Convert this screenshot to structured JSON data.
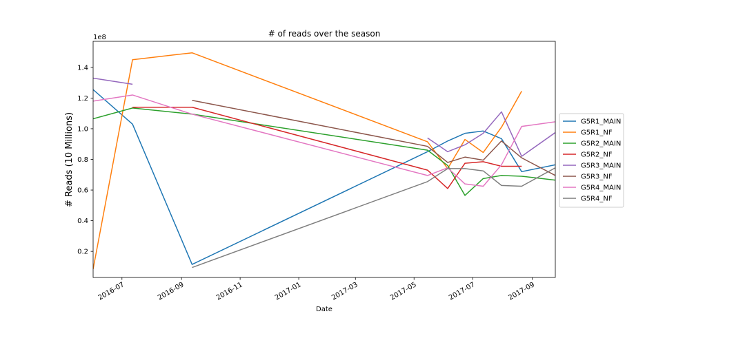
{
  "chart_data": {
    "type": "line",
    "title": "# of reads over the season",
    "xlabel": "Date",
    "ylabel": "# Reads (10 Millions)",
    "offset_text": "1e8",
    "xlim": [
      "2016-06-01",
      "2017-09-25"
    ],
    "ylim": [
      3000000,
      157000000
    ],
    "x_ticks": [
      "2016-07-01",
      "2016-09-01",
      "2016-11-01",
      "2017-01-01",
      "2017-03-01",
      "2017-05-01",
      "2017-07-01",
      "2017-09-01"
    ],
    "x_tick_labels": [
      "2016-07",
      "2016-09",
      "2016-11",
      "2017-01",
      "2017-03",
      "2017-05",
      "2017-07",
      "2017-09"
    ],
    "y_ticks": [
      20000000,
      40000000,
      60000000,
      80000000,
      100000000,
      120000000,
      140000000
    ],
    "y_tick_labels": [
      "0.2",
      "0.4",
      "0.6",
      "0.8",
      "1.0",
      "1.2",
      "1.4"
    ],
    "grid": false,
    "legend_position": "center-right, outside plot",
    "series": [
      {
        "name": "G5R1_MAIN",
        "color": "#1f77b4",
        "points": [
          [
            "2016-06-01",
            125500000
          ],
          [
            "2016-07-12",
            103000000
          ],
          [
            "2016-09-12",
            11500000
          ],
          [
            "2017-05-15",
            85000000
          ],
          [
            "2017-06-05",
            92000000
          ],
          [
            "2017-06-23",
            97000000
          ],
          [
            "2017-07-12",
            98500000
          ],
          [
            "2017-07-31",
            93500000
          ],
          [
            "2017-08-21",
            72000000
          ],
          [
            "2017-09-25",
            76500000
          ]
        ]
      },
      {
        "name": "G5R1_NF",
        "color": "#ff7f0e",
        "points": [
          [
            "2016-06-01",
            8500000
          ],
          [
            "2016-07-12",
            145000000
          ],
          [
            "2016-09-12",
            149500000
          ],
          [
            "2017-05-15",
            91500000
          ],
          [
            "2017-06-05",
            74000000
          ],
          [
            "2017-06-23",
            93000000
          ],
          [
            "2017-07-12",
            84500000
          ],
          [
            "2017-07-31",
            101000000
          ],
          [
            "2017-08-21",
            124500000
          ]
        ]
      },
      {
        "name": "G5R2_MAIN",
        "color": "#2ca02c",
        "points": [
          [
            "2016-06-01",
            106500000
          ],
          [
            "2016-07-12",
            113500000
          ],
          [
            "2016-09-12",
            109500000
          ],
          [
            "2017-05-15",
            86000000
          ],
          [
            "2017-06-05",
            76000000
          ],
          [
            "2017-06-23",
            56500000
          ],
          [
            "2017-07-12",
            67500000
          ],
          [
            "2017-07-31",
            69500000
          ],
          [
            "2017-08-21",
            69000000
          ],
          [
            "2017-09-25",
            66500000
          ]
        ]
      },
      {
        "name": "G5R2_NF",
        "color": "#d62728",
        "points": [
          [
            "2016-07-12",
            114000000
          ],
          [
            "2016-09-12",
            114000000
          ],
          [
            "2017-05-15",
            73000000
          ],
          [
            "2017-06-05",
            61000000
          ],
          [
            "2017-06-23",
            77500000
          ],
          [
            "2017-07-12",
            78500000
          ],
          [
            "2017-07-31",
            75500000
          ],
          [
            "2017-08-21",
            75500000
          ]
        ]
      },
      {
        "name": "G5R3_MAIN",
        "color": "#9467bd",
        "points": [
          [
            "2016-06-01",
            133000000
          ],
          [
            "2016-07-12",
            129000000
          ],
          null,
          [
            "2017-05-15",
            94000000
          ],
          [
            "2017-06-05",
            85000000
          ],
          [
            "2017-06-23",
            89500000
          ],
          [
            "2017-07-12",
            97000000
          ],
          [
            "2017-07-31",
            111000000
          ],
          [
            "2017-08-21",
            82000000
          ],
          [
            "2017-09-25",
            97500000
          ]
        ]
      },
      {
        "name": "G5R3_NF",
        "color": "#8c564b",
        "points": [
          [
            "2016-09-12",
            118500000
          ],
          [
            "2017-05-15",
            88500000
          ],
          [
            "2017-06-05",
            78000000
          ],
          [
            "2017-06-23",
            81500000
          ],
          [
            "2017-07-12",
            79500000
          ],
          [
            "2017-07-31",
            92000000
          ],
          [
            "2017-08-21",
            81000000
          ],
          [
            "2017-09-25",
            69500000
          ]
        ]
      },
      {
        "name": "G5R4_MAIN",
        "color": "#e377c2",
        "points": [
          [
            "2016-06-01",
            118000000
          ],
          [
            "2016-07-12",
            122000000
          ],
          [
            "2016-09-12",
            109500000
          ],
          [
            "2017-05-15",
            69500000
          ],
          [
            "2017-06-05",
            74500000
          ],
          [
            "2017-06-23",
            64000000
          ],
          [
            "2017-07-12",
            62500000
          ],
          [
            "2017-07-31",
            76500000
          ],
          [
            "2017-08-21",
            101500000
          ],
          [
            "2017-09-25",
            104500000
          ]
        ]
      },
      {
        "name": "G5R4_NF",
        "color": "#7f7f7f",
        "points": [
          [
            "2016-09-12",
            9500000
          ],
          [
            "2017-05-15",
            65500000
          ],
          [
            "2017-06-05",
            74000000
          ],
          [
            "2017-06-23",
            74000000
          ],
          [
            "2017-07-12",
            72500000
          ],
          [
            "2017-07-31",
            63000000
          ],
          [
            "2017-08-21",
            62500000
          ],
          [
            "2017-09-25",
            74500000
          ]
        ]
      }
    ]
  }
}
